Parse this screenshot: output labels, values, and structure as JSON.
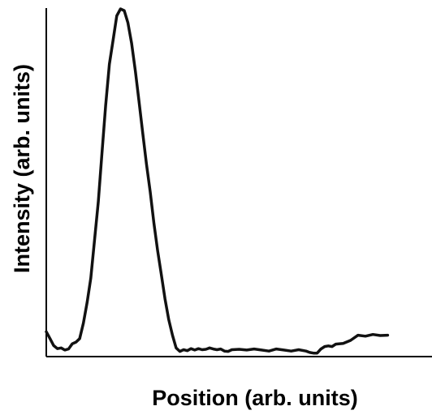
{
  "chart_data": {
    "type": "line",
    "title": "",
    "xlabel": "Position (arb. units)",
    "ylabel": "Intensity (arb. units)",
    "xlim": [
      0,
      100
    ],
    "ylim": [
      0,
      100
    ],
    "grid": false,
    "legend": "none",
    "series": [
      {
        "color": "#111111",
        "x": [
          0,
          1,
          2,
          3,
          4,
          5,
          6,
          7,
          8,
          9,
          10,
          11,
          12,
          13,
          14,
          15,
          16,
          17,
          18,
          19,
          20,
          21,
          22,
          23,
          24,
          25,
          26,
          27,
          28,
          29,
          30,
          31,
          32,
          33,
          34,
          35,
          36,
          37,
          38,
          39,
          40,
          41,
          42,
          43,
          44,
          45,
          46,
          47,
          48,
          49,
          50,
          52,
          54,
          56,
          58,
          60,
          62,
          64,
          66,
          68,
          70,
          71,
          72,
          73,
          74,
          75,
          76,
          77,
          78,
          80,
          82,
          84,
          86,
          88,
          90,
          92
        ],
        "y": [
          6.5,
          4.5,
          2.5,
          1.6,
          1.8,
          1.2,
          1.5,
          3.0,
          3.5,
          4.5,
          9.0,
          15.0,
          22.0,
          33.0,
          44.0,
          58.0,
          72.0,
          84.0,
          91.0,
          98.0,
          100.0,
          99.5,
          96.0,
          90.0,
          82.0,
          73.0,
          64.0,
          55.0,
          47.0,
          38.0,
          30.0,
          23.0,
          16.0,
          10.0,
          5.5,
          1.8,
          0.8,
          1.3,
          1.0,
          1.6,
          1.2,
          1.6,
          1.3,
          1.4,
          1.8,
          1.5,
          1.3,
          1.5,
          0.9,
          0.8,
          1.3,
          1.4,
          1.2,
          1.5,
          1.2,
          0.9,
          1.5,
          1.2,
          0.9,
          1.3,
          0.9,
          0.5,
          0.3,
          0.3,
          1.5,
          2.2,
          2.4,
          2.2,
          2.9,
          3.1,
          4.0,
          5.5,
          5.2,
          5.7,
          5.4,
          5.5
        ]
      }
    ]
  }
}
